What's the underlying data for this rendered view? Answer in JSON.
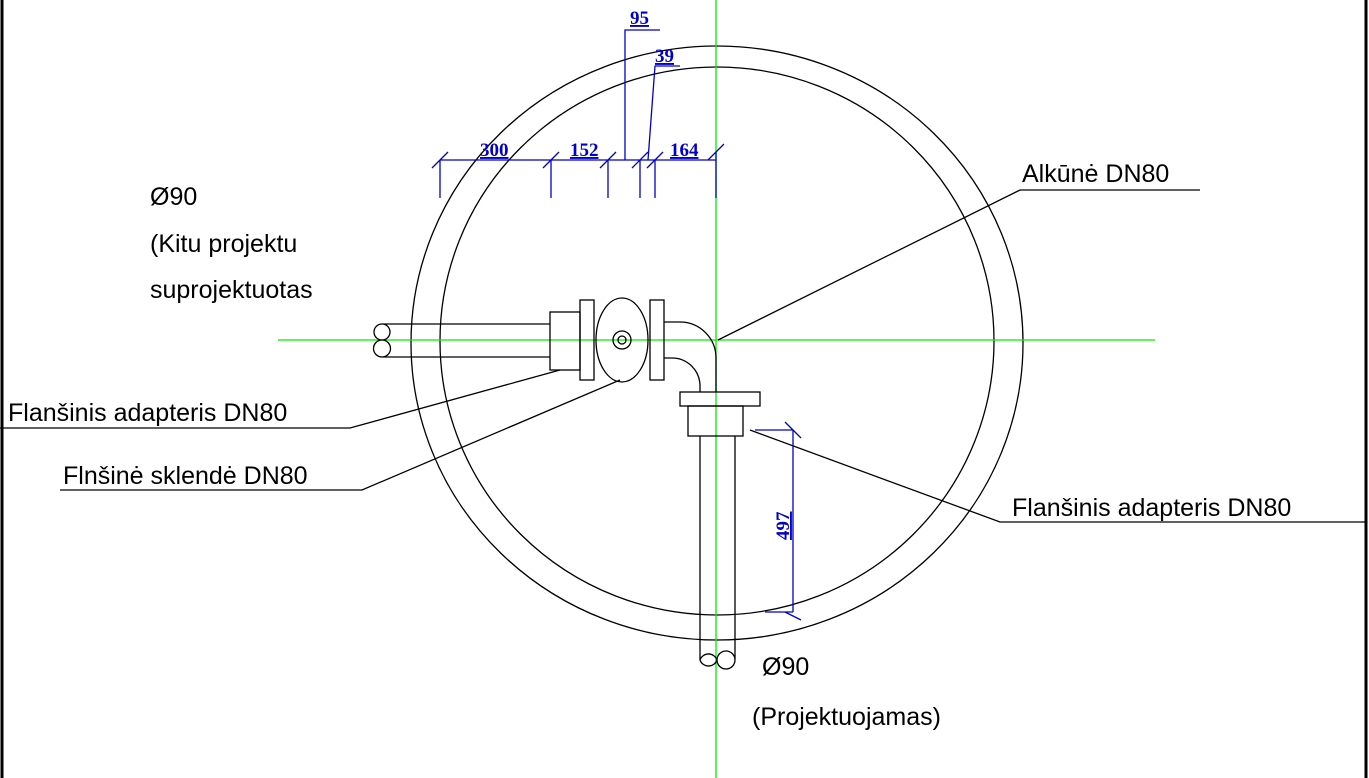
{
  "dimensions": {
    "d95": "95",
    "d39": "39",
    "d300": "300",
    "d152": "152",
    "d164": "164",
    "d497": "497"
  },
  "labels": {
    "left_pipe": [
      "Ø90",
      "(Kitu projektu",
      "suprojektuotas"
    ],
    "flange_adapter_left": "Flanšinis adapteris DN80",
    "valve": "Flnšinė sklendė DN80",
    "elbow": "Alkūnė DN80",
    "flange_adapter_right": "Flanšinis adapteris DN80",
    "bottom_pipe": [
      "Ø90",
      "(Projektuojamas)"
    ]
  }
}
